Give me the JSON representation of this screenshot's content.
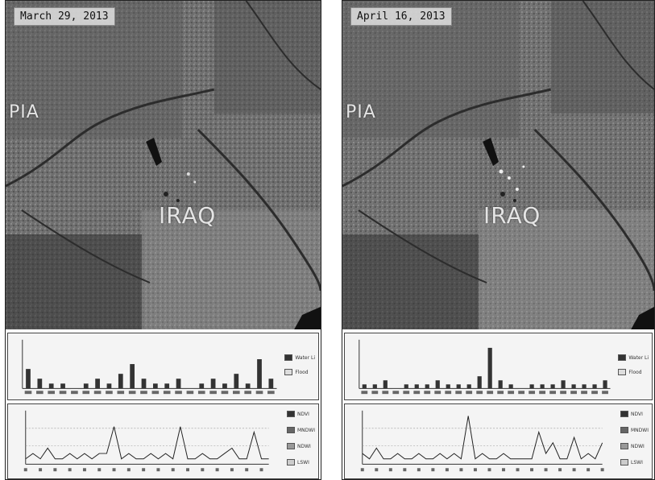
{
  "panels": [
    {
      "date_label": "March 29, 2013",
      "place_west": "PIA",
      "place_center": "IRAQ",
      "legend_top": [
        "Water Li",
        "Flood"
      ],
      "legend_bottom": [
        "NDVI",
        "MNDWI",
        "NDWI",
        "LSWI"
      ],
      "chart_data": [
        {
          "type": "bar",
          "series": [
            {
              "values": [
                4,
                2,
                1,
                1,
                0,
                1,
                2,
                1,
                3,
                5,
                2,
                1,
                1,
                2,
                0,
                1,
                2,
                1,
                3,
                1,
                6,
                2
              ]
            }
          ],
          "ylim": [
            0,
            10
          ]
        },
        {
          "type": "line",
          "series": [
            {
              "values": [
                1,
                2,
                1,
                3,
                1,
                1,
                2,
                1,
                2,
                1,
                2,
                2,
                7,
                1,
                2,
                1,
                1,
                2,
                1,
                2,
                1,
                7,
                1,
                1,
                2,
                1,
                1,
                2,
                3,
                1,
                1,
                6,
                1,
                1
              ]
            }
          ],
          "ylim": [
            0,
            10
          ]
        }
      ]
    },
    {
      "date_label": "April 16, 2013",
      "place_west": "PIA",
      "place_center": "IRAQ",
      "legend_top": [
        "Water Li",
        "Flood"
      ],
      "legend_bottom": [
        "NDVI",
        "MNDWI",
        "NDWI",
        "LSWI"
      ],
      "chart_data": [
        {
          "type": "bar",
          "series": [
            {
              "values": [
                1,
                1,
                2,
                0,
                1,
                1,
                1,
                2,
                1,
                1,
                1,
                3,
                10,
                2,
                1,
                0,
                1,
                1,
                1,
                2,
                1,
                1,
                1,
                2
              ]
            }
          ],
          "ylim": [
            0,
            12
          ]
        },
        {
          "type": "line",
          "series": [
            {
              "values": [
                2,
                1,
                3,
                1,
                1,
                2,
                1,
                1,
                2,
                1,
                1,
                2,
                1,
                2,
                1,
                9,
                1,
                2,
                1,
                1,
                2,
                1,
                1,
                1,
                1,
                6,
                2,
                4,
                1,
                1,
                5,
                1,
                2,
                1,
                4
              ]
            }
          ],
          "ylim": [
            0,
            10
          ]
        }
      ]
    }
  ]
}
